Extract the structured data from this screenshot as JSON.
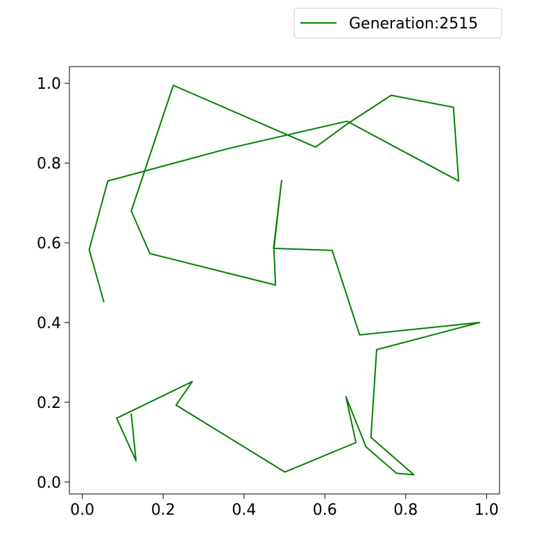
{
  "chart_data": {
    "type": "line",
    "title": "",
    "xlabel": "",
    "ylabel": "",
    "xlim": [
      -0.032,
      1.032
    ],
    "ylim": [
      -0.03,
      1.042
    ],
    "x_ticks": [
      0.0,
      0.2,
      0.4,
      0.6,
      0.8,
      1.0
    ],
    "x_tick_labels": [
      "0.0",
      "0.2",
      "0.4",
      "0.6",
      "0.8",
      "1.0"
    ],
    "y_ticks": [
      0.0,
      0.2,
      0.4,
      0.6,
      0.8,
      1.0
    ],
    "y_tick_labels": [
      "0.0",
      "0.2",
      "0.4",
      "0.6",
      "0.8",
      "1.0"
    ],
    "grid": false,
    "legend_position": "above-right",
    "series": [
      {
        "name": "Generation:2515",
        "color": "#008000",
        "x": [
          0.053,
          0.017,
          0.063,
          0.363,
          0.655,
          0.931,
          0.918,
          0.764,
          0.658,
          0.577,
          0.225,
          0.121,
          0.167,
          0.478,
          0.474,
          0.493,
          0.473,
          0.618,
          0.686,
          0.983,
          0.728,
          0.714,
          0.82,
          0.777,
          0.702,
          0.652,
          0.677,
          0.501,
          0.232,
          0.272,
          0.085,
          0.133,
          0.121
        ],
        "y": [
          0.453,
          0.583,
          0.755,
          0.837,
          0.905,
          0.755,
          0.94,
          0.97,
          0.9,
          0.84,
          0.995,
          0.68,
          0.573,
          0.494,
          0.585,
          0.756,
          0.586,
          0.581,
          0.369,
          0.4,
          0.332,
          0.112,
          0.018,
          0.022,
          0.088,
          0.214,
          0.099,
          0.025,
          0.193,
          0.252,
          0.16,
          0.053,
          0.17
        ]
      }
    ]
  }
}
